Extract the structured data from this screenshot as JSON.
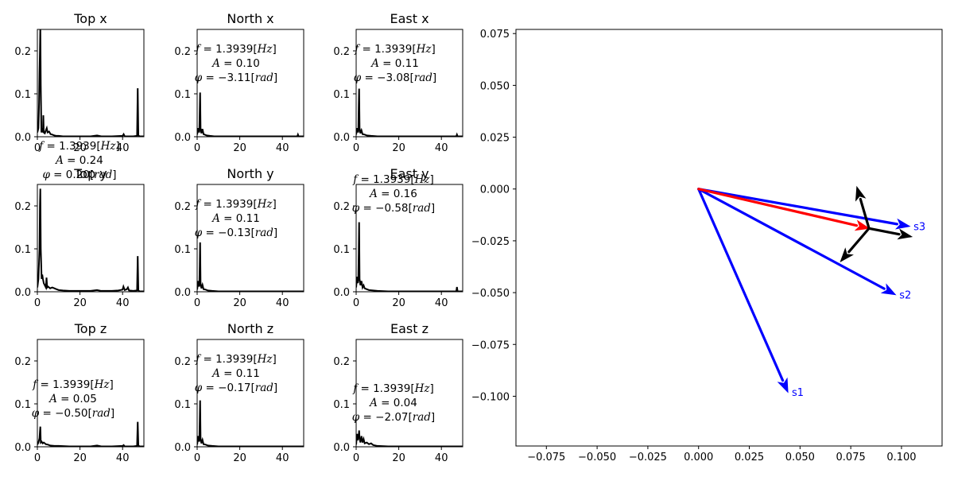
{
  "chart_data": [
    {
      "type": "line",
      "id": "top-x",
      "title": "Top x",
      "xlim": [
        0,
        50
      ],
      "ylim": [
        0,
        0.25
      ],
      "xticks": [
        "0",
        "20",
        "40"
      ],
      "yticks": [
        "0.0",
        "0.1",
        "0.2"
      ],
      "x": [
        0,
        0.5,
        0.8,
        1.0,
        1.2,
        1.39,
        1.6,
        1.9,
        2.2,
        2.6,
        2.8,
        3.0,
        3.5,
        4.0,
        4.4,
        4.8,
        5.5,
        6.2,
        7.0,
        8.0,
        9.0,
        10.0,
        12.0,
        15.0,
        20.0,
        25.0,
        28.0,
        30.0,
        35.0,
        40.0,
        40.5,
        41.0,
        41.5,
        45.0,
        46.8,
        47.1,
        47.4,
        48.0,
        50.0
      ],
      "y": [
        0.01,
        0.02,
        0.08,
        0.15,
        0.2,
        0.26,
        0.12,
        0.01,
        0.02,
        0.01,
        0.05,
        0.01,
        0.008,
        0.015,
        0.02,
        0.01,
        0.012,
        0.006,
        0.005,
        0.003,
        0.002,
        0.002,
        0.001,
        0.001,
        0.001,
        0.001,
        0.003,
        0.001,
        0.001,
        0.002,
        0.006,
        0.001,
        0.001,
        0.001,
        0.002,
        0.113,
        0.003,
        0.001,
        0.001
      ],
      "annotation": null
    },
    {
      "type": "line",
      "id": "north-x",
      "title": "North x",
      "xlim": [
        0,
        50
      ],
      "ylim": [
        0,
        0.25
      ],
      "xticks": [
        "0",
        "20",
        "40"
      ],
      "yticks": [
        "0.0",
        "0.1",
        "0.2"
      ],
      "x": [
        0,
        0.5,
        1.0,
        1.2,
        1.39,
        1.6,
        2.0,
        2.5,
        3.0,
        3.5,
        4.5,
        6.0,
        8.0,
        10.0,
        15.0,
        20.0,
        30.0,
        40.0,
        45.0,
        47.0,
        47.3,
        47.6,
        50.0
      ],
      "y": [
        0.005,
        0.02,
        0.01,
        0.06,
        0.103,
        0.02,
        0.008,
        0.018,
        0.006,
        0.005,
        0.003,
        0.002,
        0.001,
        0.001,
        0.001,
        0.001,
        0.001,
        0.001,
        0.001,
        0.001,
        0.005,
        0.001,
        0.001
      ],
      "annotation": {
        "f": "1.3939",
        "A": "0.10",
        "phi": "−3.11"
      }
    },
    {
      "type": "line",
      "id": "east-x",
      "title": "East x",
      "xlim": [
        0,
        50
      ],
      "ylim": [
        0,
        0.25
      ],
      "xticks": [
        "0",
        "20",
        "40"
      ],
      "yticks": [
        "0.0",
        "0.1",
        "0.2"
      ],
      "x": [
        0,
        0.5,
        1.0,
        1.2,
        1.39,
        1.6,
        2.0,
        2.5,
        3.0,
        4.0,
        5.0,
        7.0,
        10.0,
        20.0,
        30.0,
        40.0,
        47.0,
        47.3,
        47.6,
        50.0
      ],
      "y": [
        0.005,
        0.02,
        0.01,
        0.07,
        0.112,
        0.02,
        0.008,
        0.015,
        0.006,
        0.005,
        0.003,
        0.002,
        0.001,
        0.001,
        0.001,
        0.001,
        0.001,
        0.005,
        0.001,
        0.001
      ],
      "annotation": {
        "f": "1.3939",
        "A": "0.11",
        "phi": "−3.08"
      }
    },
    {
      "type": "line",
      "id": "top-y",
      "title": "Top y",
      "xlim": [
        0,
        50
      ],
      "ylim": [
        0,
        0.25
      ],
      "xticks": [
        "0",
        "20",
        "40"
      ],
      "yticks": [
        "0.0",
        "0.1",
        "0.2"
      ],
      "x": [
        0,
        0.5,
        1.0,
        1.2,
        1.39,
        1.6,
        2.0,
        2.3,
        2.6,
        3.0,
        3.5,
        4.0,
        4.3,
        4.6,
        5.0,
        6.0,
        7.0,
        8.0,
        9.0,
        10.0,
        12.0,
        15.0,
        20.0,
        25.0,
        28.0,
        30.0,
        35.0,
        38.0,
        40.0,
        40.4,
        41.0,
        42.0,
        42.5,
        43.0,
        45.0,
        46.8,
        47.1,
        47.4,
        48.0,
        50.0
      ],
      "y": [
        0.01,
        0.03,
        0.1,
        0.2,
        0.24,
        0.1,
        0.03,
        0.04,
        0.03,
        0.02,
        0.015,
        0.01,
        0.033,
        0.01,
        0.012,
        0.008,
        0.01,
        0.008,
        0.006,
        0.004,
        0.003,
        0.002,
        0.002,
        0.002,
        0.004,
        0.002,
        0.002,
        0.003,
        0.005,
        0.012,
        0.004,
        0.006,
        0.01,
        0.003,
        0.002,
        0.003,
        0.083,
        0.003,
        0.001,
        0.001
      ],
      "annotation": {
        "f": "1.3939",
        "A": "0.24",
        "phi": "0.20"
      }
    },
    {
      "type": "line",
      "id": "north-y",
      "title": "North y",
      "xlim": [
        0,
        50
      ],
      "ylim": [
        0,
        0.25
      ],
      "xticks": [
        "0",
        "20",
        "40"
      ],
      "yticks": [
        "0.0",
        "0.1",
        "0.2"
      ],
      "x": [
        0,
        0.5,
        1.0,
        1.2,
        1.39,
        1.6,
        2.0,
        2.5,
        3.0,
        4.0,
        5.0,
        7.0,
        10.0,
        20.0,
        30.0,
        40.0,
        50.0
      ],
      "y": [
        0.005,
        0.025,
        0.012,
        0.06,
        0.115,
        0.02,
        0.008,
        0.016,
        0.006,
        0.005,
        0.003,
        0.002,
        0.001,
        0.001,
        0.001,
        0.001,
        0.001
      ],
      "annotation": {
        "f": "1.3939",
        "A": "0.11",
        "phi": "−0.13"
      }
    },
    {
      "type": "line",
      "id": "east-y",
      "title": "East y",
      "xlim": [
        0,
        50
      ],
      "ylim": [
        0,
        0.25
      ],
      "xticks": [
        "0",
        "20",
        "40"
      ],
      "yticks": [
        "0.0",
        "0.1",
        "0.2"
      ],
      "x": [
        0,
        0.4,
        0.8,
        1.0,
        1.2,
        1.39,
        1.6,
        2.0,
        2.5,
        3.0,
        3.5,
        4.0,
        5.0,
        6.0,
        8.0,
        10.0,
        15.0,
        20.0,
        30.0,
        40.0,
        47.0,
        47.3,
        47.6,
        50.0
      ],
      "y": [
        0.01,
        0.035,
        0.02,
        0.03,
        0.09,
        0.162,
        0.03,
        0.015,
        0.025,
        0.01,
        0.015,
        0.008,
        0.006,
        0.004,
        0.003,
        0.002,
        0.001,
        0.001,
        0.001,
        0.001,
        0.001,
        0.011,
        0.001,
        0.001
      ],
      "annotation": {
        "f": "1.3939",
        "A": "0.16",
        "phi": "−0.58"
      }
    },
    {
      "type": "line",
      "id": "top-z",
      "title": "Top z",
      "xlim": [
        0,
        50
      ],
      "ylim": [
        0,
        0.25
      ],
      "xticks": [
        "0",
        "20",
        "40"
      ],
      "yticks": [
        "0.0",
        "0.1",
        "0.2"
      ],
      "x": [
        0,
        0.5,
        1.0,
        1.2,
        1.39,
        1.6,
        2.0,
        2.5,
        3.0,
        4.0,
        5.0,
        6.0,
        8.0,
        10.0,
        15.0,
        20.0,
        25.0,
        28.0,
        30.0,
        35.0,
        40.0,
        40.5,
        41.0,
        45.0,
        46.8,
        47.1,
        47.4,
        48.0,
        50.0
      ],
      "y": [
        0.005,
        0.01,
        0.02,
        0.035,
        0.047,
        0.01,
        0.012,
        0.008,
        0.01,
        0.006,
        0.005,
        0.003,
        0.002,
        0.002,
        0.001,
        0.001,
        0.001,
        0.003,
        0.001,
        0.001,
        0.002,
        0.004,
        0.001,
        0.001,
        0.002,
        0.058,
        0.003,
        0.001,
        0.001
      ],
      "annotation": {
        "f": "1.3939",
        "A": "0.05",
        "phi": "−0.50"
      }
    },
    {
      "type": "line",
      "id": "north-z",
      "title": "North z",
      "xlim": [
        0,
        50
      ],
      "ylim": [
        0,
        0.25
      ],
      "xticks": [
        "0",
        "20",
        "40"
      ],
      "yticks": [
        "0.0",
        "0.1",
        "0.2"
      ],
      "x": [
        0,
        0.5,
        1.0,
        1.2,
        1.39,
        1.6,
        2.0,
        2.5,
        3.0,
        4.0,
        5.0,
        7.0,
        10.0,
        20.0,
        30.0,
        40.0,
        50.0
      ],
      "y": [
        0.005,
        0.025,
        0.012,
        0.06,
        0.108,
        0.02,
        0.008,
        0.016,
        0.006,
        0.005,
        0.003,
        0.002,
        0.001,
        0.001,
        0.001,
        0.001,
        0.001
      ],
      "annotation": {
        "f": "1.3939",
        "A": "0.11",
        "phi": "−0.17"
      }
    },
    {
      "type": "line",
      "id": "east-z",
      "title": "East z",
      "xlim": [
        0,
        50
      ],
      "ylim": [
        0,
        0.25
      ],
      "xticks": [
        "0",
        "20",
        "40"
      ],
      "yticks": [
        "0.0",
        "0.1",
        "0.2"
      ],
      "x": [
        0,
        0.4,
        0.8,
        1.0,
        1.2,
        1.39,
        1.6,
        2.0,
        2.5,
        3.0,
        3.5,
        4.0,
        5.0,
        6.0,
        7.0,
        8.0,
        10.0,
        15.0,
        20.0,
        30.0,
        40.0,
        50.0
      ],
      "y": [
        0.005,
        0.03,
        0.015,
        0.03,
        0.025,
        0.038,
        0.02,
        0.01,
        0.025,
        0.01,
        0.018,
        0.008,
        0.01,
        0.006,
        0.008,
        0.004,
        0.002,
        0.001,
        0.001,
        0.001,
        0.001,
        0.001
      ],
      "annotation": {
        "f": "1.3939",
        "A": "0.04",
        "phi": "−2.07"
      }
    },
    {
      "type": "vector",
      "id": "vector-plot",
      "xlim": [
        -0.09,
        0.12
      ],
      "ylim": [
        -0.124,
        0.077
      ],
      "xticks": [
        -0.075,
        -0.05,
        -0.025,
        0.0,
        0.025,
        0.05,
        0.075,
        0.1
      ],
      "xtick_labels": [
        "−0.075",
        "−0.050",
        "−0.025",
        "0.000",
        "0.025",
        "0.050",
        "0.075",
        "0.100"
      ],
      "yticks": [
        0.075,
        0.05,
        0.025,
        0.0,
        -0.025,
        -0.05,
        -0.075,
        -0.1
      ],
      "ytick_labels": [
        "0.075",
        "0.050",
        "0.025",
        "0.000",
        "−0.025",
        "−0.050",
        "−0.075",
        "−0.100"
      ],
      "sensors": [
        {
          "label": "s1",
          "x0": 0,
          "y0": 0,
          "x1": 0.044,
          "y1": -0.098,
          "color": "#0000ff"
        },
        {
          "label": "s2",
          "x0": 0,
          "y0": 0,
          "x1": 0.097,
          "y1": -0.051,
          "color": "#0000ff"
        },
        {
          "label": "s3",
          "x0": 0,
          "y0": 0,
          "x1": 0.104,
          "y1": -0.018,
          "color": "#0000ff"
        }
      ],
      "resultant": {
        "x0": 0,
        "y0": 0,
        "x1": 0.084,
        "y1": -0.019,
        "color": "#ff0000"
      },
      "frame": [
        {
          "x0": 0.084,
          "y0": -0.019,
          "x1": 0.078,
          "y1": 0.001,
          "color": "#000000"
        },
        {
          "x0": 0.084,
          "y0": -0.019,
          "x1": 0.105,
          "y1": -0.023,
          "color": "#000000"
        },
        {
          "x0": 0.084,
          "y0": -0.019,
          "x1": 0.07,
          "y1": -0.035,
          "color": "#000000"
        }
      ]
    }
  ]
}
